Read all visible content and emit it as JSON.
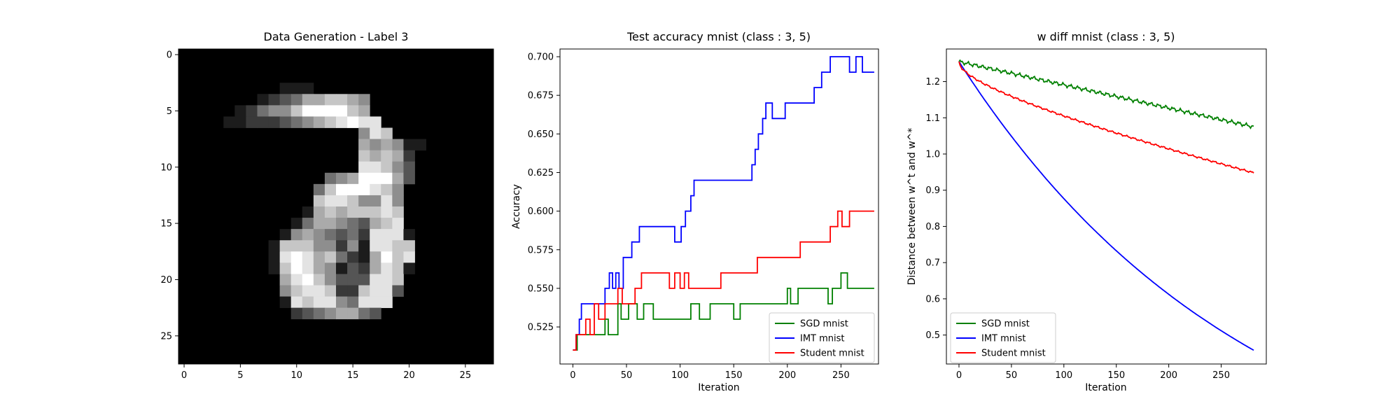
{
  "colors": {
    "sgd": "#008000",
    "imt": "#0000ff",
    "student": "#ff0000"
  },
  "chart_data": [
    {
      "type": "heatmap",
      "title": "Data Generation - Label 3",
      "xticks": [
        0,
        5,
        10,
        15,
        20,
        25
      ],
      "yticks": [
        0,
        5,
        10,
        15,
        20,
        25
      ],
      "xlim": [
        -0.5,
        27.5
      ],
      "ylim": [
        27.5,
        -0.5
      ],
      "rows": [
        "0000000000000000000000000000",
        "0000000000000000000000000000",
        "0000000000000000000000000000",
        "0000000001110000000000000000",
        "0000000123466776500000000000",
        "0000012455799997600000000000",
        "0000112223456789880000000000",
        "0000000000000000587000000000",
        "0000000000000000656511000000",
        "0000000000000000767620000000",
        "0000000000000000887530000000",
        "0000000000000456999630000000",
        "0000000000004799987500000000",
        "0000000000007887558500000000",
        "0000000000016767778700000000",
        "0000000000146654367800000000",
        "0000000001565434288810000000",
        "0000000017775525188770000000",
        "0000000018986742169780000000",
        "0000000017986513268710000000",
        "0000000006897533388700000000",
        "0000000005788722788300000000",
        "0000000001878854888000000000",
        "0000000000234566430000000000",
        "0000000000000000000000000000",
        "0000000000000000000000000000",
        "0000000000000000000000000000",
        "0000000000000000000000000000"
      ]
    },
    {
      "type": "line",
      "title": "Test accuracy mnist (class : 3, 5)",
      "xlabel": "Iteration",
      "ylabel": "Accuracy",
      "xlim": [
        -12,
        285
      ],
      "ylim": [
        0.501,
        0.705
      ],
      "xticks": [
        0,
        50,
        100,
        150,
        200,
        250
      ],
      "yticks": [
        0.525,
        0.55,
        0.575,
        0.6,
        0.625,
        0.65,
        0.675,
        0.7
      ],
      "legend": "bottom-right",
      "series": [
        {
          "name": "SGD mnist",
          "color_key": "sgd",
          "points": [
            [
              0,
              0.51
            ],
            [
              4,
              0.51
            ],
            [
              4,
              0.52
            ],
            [
              30,
              0.52
            ],
            [
              30,
              0.53
            ],
            [
              33,
              0.53
            ],
            [
              33,
              0.52
            ],
            [
              42,
              0.52
            ],
            [
              42,
              0.54
            ],
            [
              45,
              0.54
            ],
            [
              45,
              0.53
            ],
            [
              52,
              0.53
            ],
            [
              52,
              0.54
            ],
            [
              60,
              0.54
            ],
            [
              60,
              0.53
            ],
            [
              66,
              0.53
            ],
            [
              66,
              0.54
            ],
            [
              75,
              0.54
            ],
            [
              75,
              0.53
            ],
            [
              110,
              0.53
            ],
            [
              110,
              0.54
            ],
            [
              118,
              0.54
            ],
            [
              118,
              0.53
            ],
            [
              128,
              0.53
            ],
            [
              128,
              0.54
            ],
            [
              150,
              0.54
            ],
            [
              150,
              0.53
            ],
            [
              156,
              0.53
            ],
            [
              156,
              0.54
            ],
            [
              200,
              0.54
            ],
            [
              200,
              0.55
            ],
            [
              203,
              0.55
            ],
            [
              203,
              0.54
            ],
            [
              210,
              0.54
            ],
            [
              210,
              0.55
            ],
            [
              238,
              0.55
            ],
            [
              238,
              0.54
            ],
            [
              242,
              0.54
            ],
            [
              242,
              0.55
            ],
            [
              250,
              0.55
            ],
            [
              250,
              0.56
            ],
            [
              256,
              0.56
            ],
            [
              256,
              0.55
            ],
            [
              281,
              0.55
            ]
          ]
        },
        {
          "name": "IMT mnist",
          "color_key": "imt",
          "points": [
            [
              0,
              0.51
            ],
            [
              3,
              0.51
            ],
            [
              3,
              0.52
            ],
            [
              6,
              0.52
            ],
            [
              6,
              0.53
            ],
            [
              8,
              0.53
            ],
            [
              8,
              0.54
            ],
            [
              30,
              0.54
            ],
            [
              30,
              0.55
            ],
            [
              34,
              0.55
            ],
            [
              34,
              0.56
            ],
            [
              37,
              0.56
            ],
            [
              37,
              0.55
            ],
            [
              40,
              0.55
            ],
            [
              40,
              0.56
            ],
            [
              43,
              0.56
            ],
            [
              43,
              0.55
            ],
            [
              47,
              0.55
            ],
            [
              47,
              0.57
            ],
            [
              55,
              0.57
            ],
            [
              55,
              0.58
            ],
            [
              62,
              0.58
            ],
            [
              62,
              0.59
            ],
            [
              95,
              0.59
            ],
            [
              95,
              0.58
            ],
            [
              101,
              0.58
            ],
            [
              101,
              0.59
            ],
            [
              105,
              0.59
            ],
            [
              105,
              0.6
            ],
            [
              110,
              0.6
            ],
            [
              110,
              0.61
            ],
            [
              113,
              0.61
            ],
            [
              113,
              0.62
            ],
            [
              167,
              0.62
            ],
            [
              167,
              0.63
            ],
            [
              170,
              0.63
            ],
            [
              170,
              0.64
            ],
            [
              173,
              0.64
            ],
            [
              173,
              0.65
            ],
            [
              177,
              0.65
            ],
            [
              177,
              0.66
            ],
            [
              180,
              0.66
            ],
            [
              180,
              0.67
            ],
            [
              186,
              0.67
            ],
            [
              186,
              0.66
            ],
            [
              198,
              0.66
            ],
            [
              198,
              0.67
            ],
            [
              225,
              0.67
            ],
            [
              225,
              0.68
            ],
            [
              232,
              0.68
            ],
            [
              232,
              0.69
            ],
            [
              240,
              0.69
            ],
            [
              240,
              0.7
            ],
            [
              258,
              0.7
            ],
            [
              258,
              0.69
            ],
            [
              264,
              0.69
            ],
            [
              264,
              0.7
            ],
            [
              270,
              0.7
            ],
            [
              270,
              0.69
            ],
            [
              281,
              0.69
            ]
          ]
        },
        {
          "name": "Student mnist",
          "color_key": "student",
          "points": [
            [
              0,
              0.51
            ],
            [
              3,
              0.51
            ],
            [
              3,
              0.52
            ],
            [
              12,
              0.52
            ],
            [
              12,
              0.53
            ],
            [
              16,
              0.53
            ],
            [
              16,
              0.52
            ],
            [
              20,
              0.52
            ],
            [
              20,
              0.54
            ],
            [
              24,
              0.54
            ],
            [
              24,
              0.53
            ],
            [
              30,
              0.53
            ],
            [
              30,
              0.54
            ],
            [
              42,
              0.54
            ],
            [
              42,
              0.55
            ],
            [
              46,
              0.55
            ],
            [
              46,
              0.54
            ],
            [
              58,
              0.54
            ],
            [
              58,
              0.55
            ],
            [
              64,
              0.55
            ],
            [
              64,
              0.56
            ],
            [
              90,
              0.56
            ],
            [
              90,
              0.55
            ],
            [
              95,
              0.55
            ],
            [
              95,
              0.56
            ],
            [
              100,
              0.56
            ],
            [
              100,
              0.55
            ],
            [
              104,
              0.55
            ],
            [
              104,
              0.56
            ],
            [
              108,
              0.56
            ],
            [
              108,
              0.55
            ],
            [
              138,
              0.55
            ],
            [
              138,
              0.56
            ],
            [
              172,
              0.56
            ],
            [
              172,
              0.57
            ],
            [
              212,
              0.57
            ],
            [
              212,
              0.58
            ],
            [
              240,
              0.58
            ],
            [
              240,
              0.59
            ],
            [
              247,
              0.59
            ],
            [
              247,
              0.6
            ],
            [
              251,
              0.6
            ],
            [
              251,
              0.59
            ],
            [
              258,
              0.59
            ],
            [
              258,
              0.6
            ],
            [
              281,
              0.6
            ]
          ]
        }
      ]
    },
    {
      "type": "line",
      "title": "w diff mnist (class : 3, 5)",
      "xlabel": "Iteration",
      "ylabel": "Distance between w^t and w^*",
      "xlim": [
        -12,
        293
      ],
      "ylim": [
        0.42,
        1.29
      ],
      "xticks": [
        0,
        50,
        100,
        150,
        200,
        250
      ],
      "yticks": [
        0.5,
        0.6,
        0.7,
        0.8,
        0.9,
        1.0,
        1.1,
        1.2
      ],
      "legend": "bottom-left",
      "series": [
        {
          "name": "SGD mnist",
          "color_key": "sgd",
          "model": "linear",
          "start": 1.255,
          "end": 1.075,
          "x_end": 281,
          "noise": 0.006
        },
        {
          "name": "IMT mnist",
          "color_key": "imt",
          "model": "exp",
          "start": 1.255,
          "end": 0.458,
          "x_end": 281,
          "noise": 0.0
        },
        {
          "name": "Student mnist",
          "color_key": "student",
          "model": "curve",
          "start": 1.255,
          "end": 0.948,
          "x_end": 281,
          "noise": 0.003
        }
      ]
    }
  ]
}
